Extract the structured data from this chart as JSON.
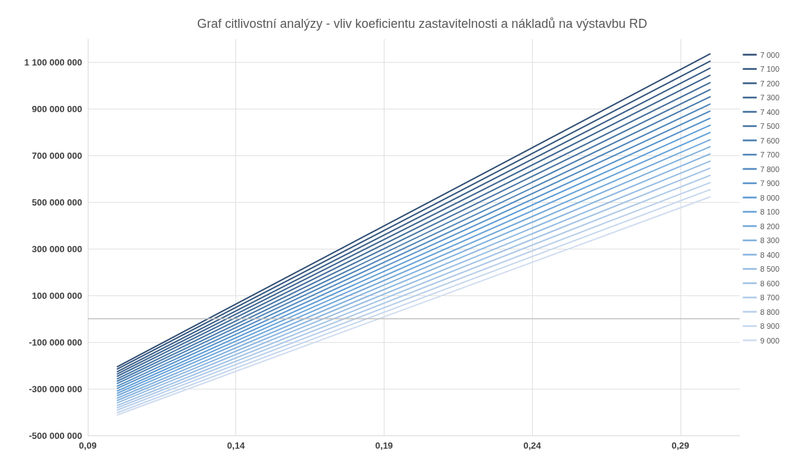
{
  "chart_data": {
    "type": "line",
    "title": "Graf citlivostní analýzy - vliv koeficientu zastavitelnosti a nákladů na výstavbu RD",
    "x": [
      0.1,
      0.3
    ],
    "series": [
      {
        "name": "7 000",
        "color": "#2e4d73",
        "values": [
          -205000000,
          1136000000
        ]
      },
      {
        "name": "7 100",
        "color": "#33557d",
        "values": [
          -215000000,
          1105000000
        ]
      },
      {
        "name": "7 200",
        "color": "#375d87",
        "values": [
          -226000000,
          1075000000
        ]
      },
      {
        "name": "7 300",
        "color": "#3c6490",
        "values": [
          -236000000,
          1044000000
        ]
      },
      {
        "name": "7 400",
        "color": "#406c9a",
        "values": [
          -246000000,
          1013000000
        ]
      },
      {
        "name": "7 500",
        "color": "#4574a4",
        "values": [
          -257000000,
          983000000
        ]
      },
      {
        "name": "7 600",
        "color": "#497cae",
        "values": [
          -267000000,
          952000000
        ]
      },
      {
        "name": "7 700",
        "color": "#4e84b8",
        "values": [
          -277000000,
          921000000
        ]
      },
      {
        "name": "7 800",
        "color": "#528bc1",
        "values": [
          -288000000,
          891000000
        ]
      },
      {
        "name": "7 900",
        "color": "#5793cb",
        "values": [
          -298000000,
          860000000
        ]
      },
      {
        "name": "8 000",
        "color": "#5b9bd5",
        "values": [
          -309000000,
          830000000
        ]
      },
      {
        "name": "8 100",
        "color": "#67a2d8",
        "values": [
          -319000000,
          799000000
        ]
      },
      {
        "name": "8 200",
        "color": "#72a8da",
        "values": [
          -329000000,
          768000000
        ]
      },
      {
        "name": "8 300",
        "color": "#7eafdd",
        "values": [
          -340000000,
          738000000
        ]
      },
      {
        "name": "8 400",
        "color": "#8ab5e0",
        "values": [
          -350000000,
          707000000
        ]
      },
      {
        "name": "8 500",
        "color": "#96bce3",
        "values": [
          -360000000,
          676000000
        ]
      },
      {
        "name": "8 600",
        "color": "#a1c2e5",
        "values": [
          -371000000,
          646000000
        ]
      },
      {
        "name": "8 700",
        "color": "#adc9e8",
        "values": [
          -381000000,
          615000000
        ]
      },
      {
        "name": "8 800",
        "color": "#b9cfeb",
        "values": [
          -391000000,
          584000000
        ]
      },
      {
        "name": "8 900",
        "color": "#c4d6ed",
        "values": [
          -402000000,
          554000000
        ]
      },
      {
        "name": "9 000",
        "color": "#d0dcf0",
        "values": [
          -412000000,
          523000000
        ]
      }
    ],
    "xlim": [
      0.09,
      0.31
    ],
    "xticks": [
      {
        "value": 0.09,
        "label": "0,09"
      },
      {
        "value": 0.14,
        "label": "0,14"
      },
      {
        "value": 0.19,
        "label": "0,19"
      },
      {
        "value": 0.24,
        "label": "0,24"
      },
      {
        "value": 0.29,
        "label": "0,29"
      }
    ],
    "ylim": [
      -500000000,
      1200000000
    ],
    "yticks": [
      {
        "value": -500000000,
        "label": "-500 000 000"
      },
      {
        "value": -300000000,
        "label": "-300 000 000"
      },
      {
        "value": -100000000,
        "label": "-100 000 000"
      },
      {
        "value": 100000000,
        "label": "100 000 000"
      },
      {
        "value": 300000000,
        "label": "300 000 000"
      },
      {
        "value": 500000000,
        "label": "500 000 000"
      },
      {
        "value": 700000000,
        "label": "700 000 000"
      },
      {
        "value": 900000000,
        "label": "900 000 000"
      },
      {
        "value": 1100000000,
        "label": "1 100 000 000"
      }
    ],
    "ref_lines": [
      {
        "axis": "y",
        "value": 0,
        "color": "#bfbfbf"
      }
    ],
    "grid": true,
    "legend": "right",
    "marker": "none",
    "line_style": "solid"
  }
}
